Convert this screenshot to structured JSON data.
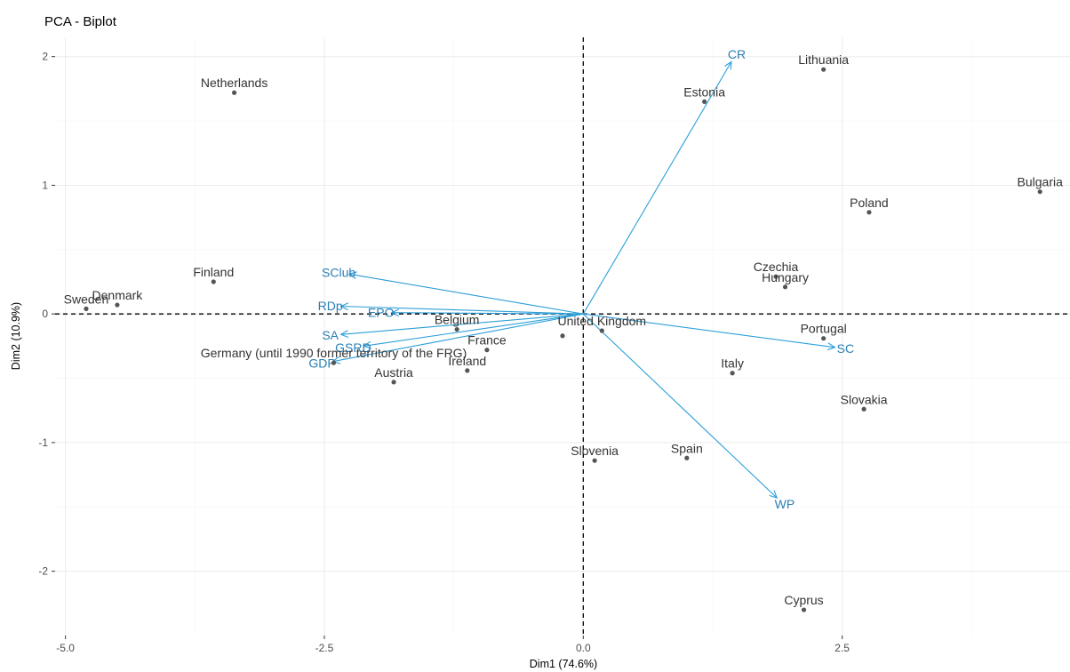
{
  "colors": {
    "vector": "#2c9fd9",
    "vector_label": "#2a7fb5",
    "point": "#555555",
    "point_label": "#333333"
  },
  "chart_data": {
    "type": "scatter",
    "title": "PCA - Biplot",
    "xlabel": "Dim1 (74.6%)",
    "ylabel": "Dim2 (10.9%)",
    "xlim": [
      -5.1,
      4.7
    ],
    "ylim": [
      -2.5,
      2.15
    ],
    "xticks": [
      -5.0,
      -2.5,
      0.0,
      2.5
    ],
    "xtick_labels": [
      "-5.0",
      "-2.5",
      "0.0",
      "2.5"
    ],
    "yticks": [
      -2,
      -1,
      0,
      1,
      2
    ],
    "ytick_labels": [
      "-2",
      "-1",
      "0",
      "1",
      "2"
    ],
    "grid": true,
    "points": [
      {
        "label": "Lithuania",
        "x": 2.32,
        "y": 1.9
      },
      {
        "label": "Estonia",
        "x": 1.17,
        "y": 1.65
      },
      {
        "label": "Netherlands",
        "x": -3.37,
        "y": 1.72
      },
      {
        "label": "Poland",
        "x": 2.76,
        "y": 0.79
      },
      {
        "label": "Bulgaria",
        "x": 4.41,
        "y": 0.95
      },
      {
        "label": "Czechia",
        "x": 1.86,
        "y": 0.29
      },
      {
        "label": "Hungary",
        "x": 1.95,
        "y": 0.21
      },
      {
        "label": "Denmark",
        "x": -4.5,
        "y": 0.07
      },
      {
        "label": "Finland",
        "x": -3.57,
        "y": 0.25
      },
      {
        "label": "Sweden",
        "x": -4.8,
        "y": 0.04
      },
      {
        "label": "United Kingdom",
        "x": 0.18,
        "y": -0.13
      },
      {
        "label": "Belgium",
        "x": -1.22,
        "y": -0.12
      },
      {
        "label": "Germany (until 1990 former territory of the FRG)",
        "x": -2.41,
        "y": -0.38
      },
      {
        "label": "France",
        "x": -0.93,
        "y": -0.28
      },
      {
        "label": "Ireland",
        "x": -1.12,
        "y": -0.44
      },
      {
        "label": "Austria",
        "x": -1.83,
        "y": -0.53
      },
      {
        "label": "Portugal",
        "x": 2.32,
        "y": -0.19
      },
      {
        "label": "Italy",
        "x": 1.44,
        "y": -0.46
      },
      {
        "label": "Slovakia",
        "x": 2.71,
        "y": -0.74
      },
      {
        "label": "Spain",
        "x": 1.0,
        "y": -1.12
      },
      {
        "label": "Slovenia",
        "x": 0.11,
        "y": -1.14
      },
      {
        "label": "Cyprus",
        "x": 2.13,
        "y": -2.3
      },
      {
        "label": "",
        "x": -0.2,
        "y": -0.17
      }
    ],
    "variables": [
      {
        "label": "CR",
        "x": 1.43,
        "y": 1.96
      },
      {
        "label": "SClub",
        "x": -2.26,
        "y": 0.31
      },
      {
        "label": "RDp",
        "x": -2.34,
        "y": 0.06
      },
      {
        "label": "EPO",
        "x": -1.85,
        "y": 0.01
      },
      {
        "label": "SA",
        "x": -2.34,
        "y": -0.16
      },
      {
        "label": "GSRD",
        "x": -2.12,
        "y": -0.25
      },
      {
        "label": "GDP",
        "x": -2.42,
        "y": -0.37
      },
      {
        "label": "SC",
        "x": 2.43,
        "y": -0.26
      },
      {
        "label": "WP",
        "x": 1.87,
        "y": -1.43
      }
    ]
  }
}
